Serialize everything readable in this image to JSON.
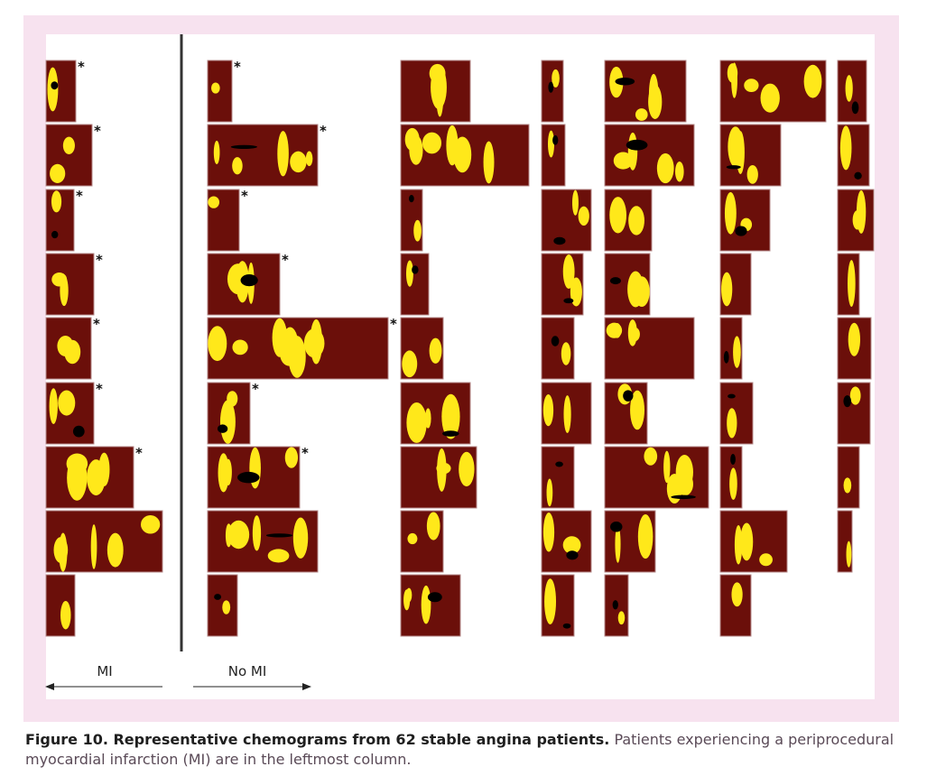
{
  "figure": {
    "label_mi": "MI",
    "label_no_mi": "No MI",
    "star_symbol": "*",
    "colors": {
      "lipid_core": "#ffe81a",
      "necrotic": "#000000",
      "fibrous": "#6b0f0a",
      "frame_background": "#f7e2ef"
    }
  },
  "caption": {
    "title": "Figure 10. Representative chemograms from 62 stable angina patients.",
    "text": " Patients experiencing a periprocedural myocardial infarction (MI) are in the leftmost column."
  }
}
